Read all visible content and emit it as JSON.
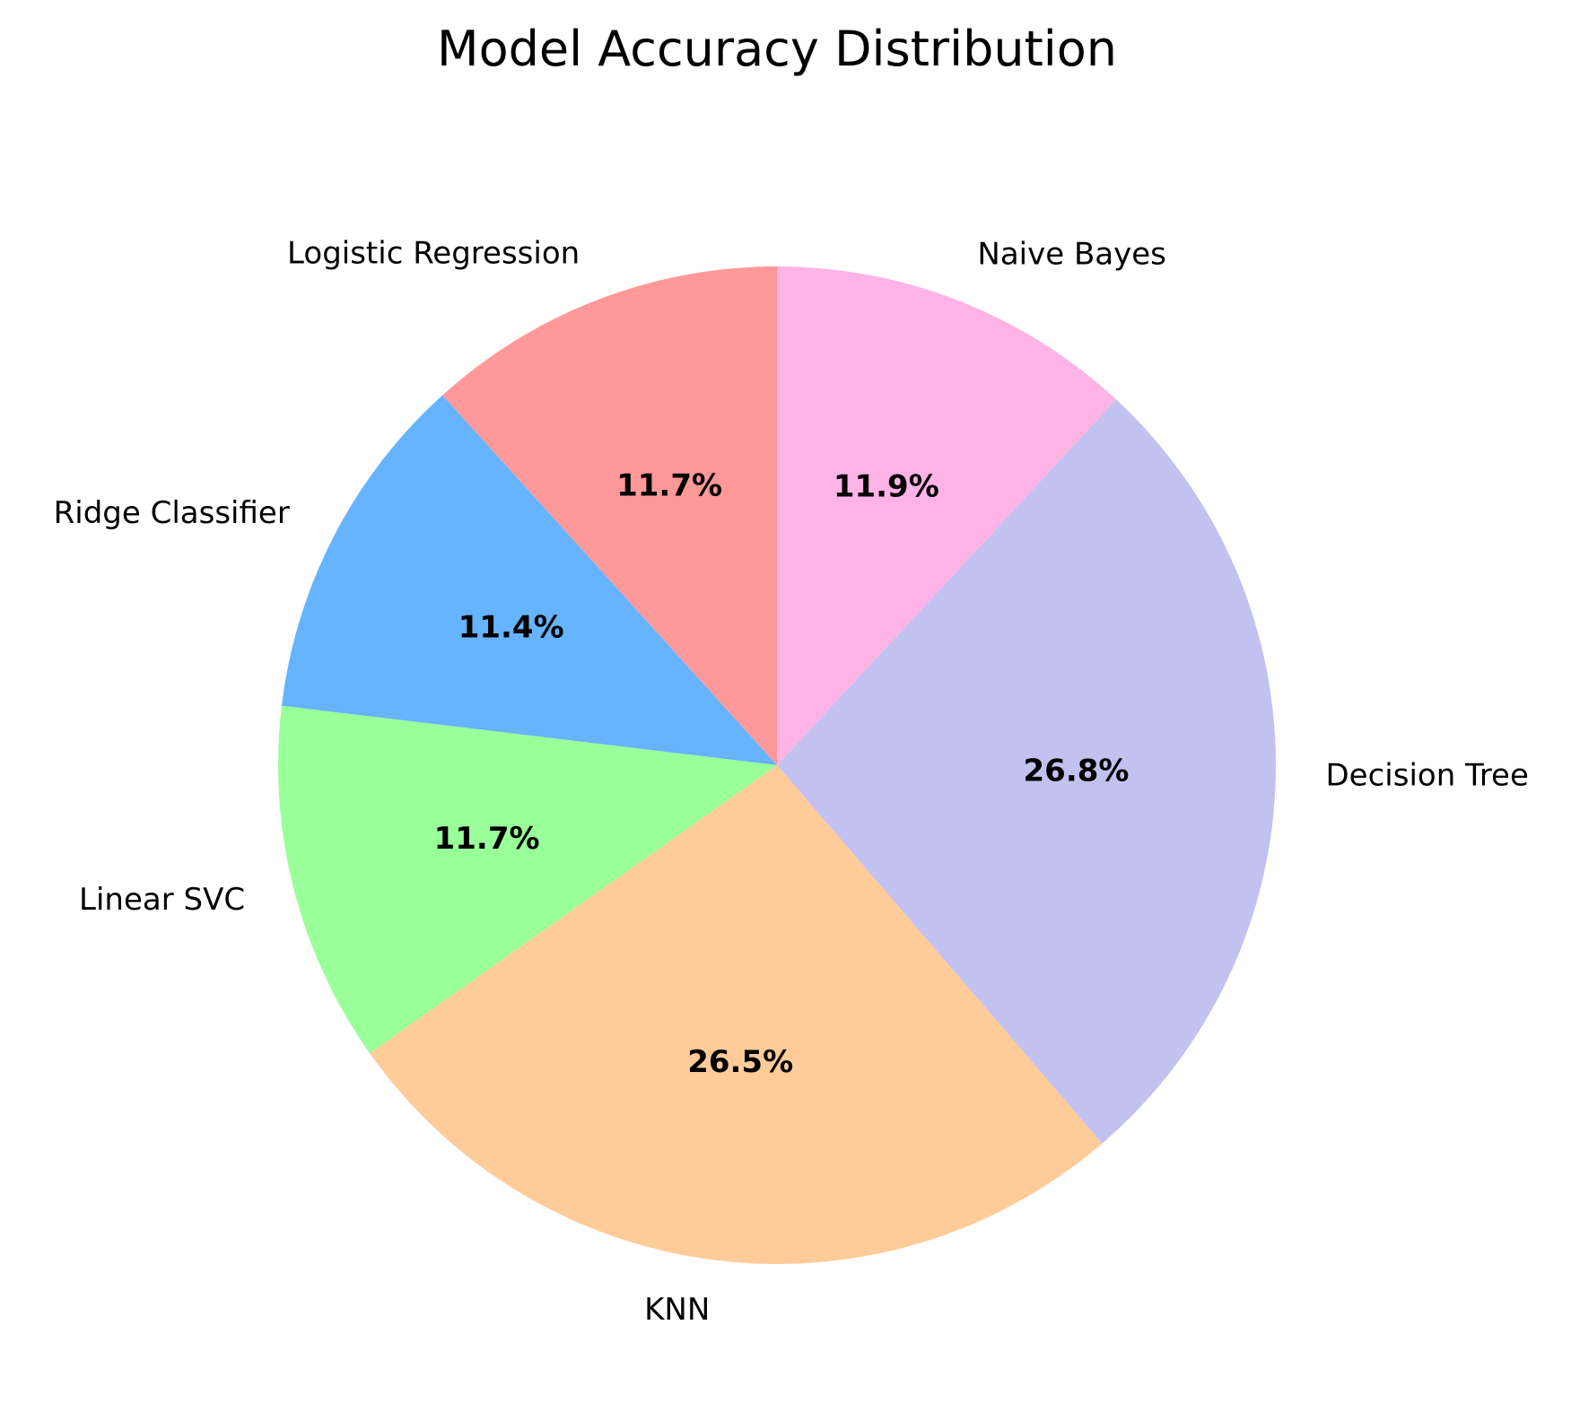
{
  "chart_data": {
    "type": "pie",
    "title": "Model Accuracy Distribution",
    "start_angle": "12 o'clock",
    "direction": "counterclockwise",
    "slices": [
      {
        "label": "Logistic Regression",
        "value": 11.7,
        "pct_label": "11.7%",
        "color": "#ff9999"
      },
      {
        "label": "Ridge Classifier",
        "value": 11.4,
        "pct_label": "11.4%",
        "color": "#66b3ff"
      },
      {
        "label": "Linear SVC",
        "value": 11.7,
        "pct_label": "11.7%",
        "color": "#99ff99"
      },
      {
        "label": "KNN",
        "value": 26.5,
        "pct_label": "26.5%",
        "color": "#ffcc99"
      },
      {
        "label": "Decision Tree",
        "value": 26.8,
        "pct_label": "26.8%",
        "color": "#c2c2f0"
      },
      {
        "label": "Naive Bayes",
        "value": 11.9,
        "pct_label": "11.9%",
        "color": "#ffb3e6"
      }
    ]
  }
}
